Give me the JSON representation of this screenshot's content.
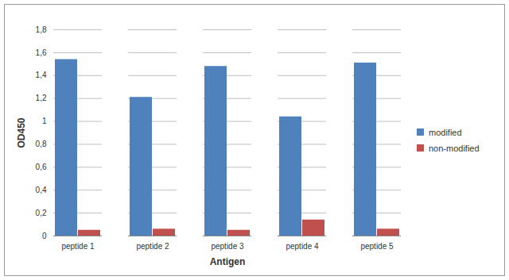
{
  "chart_data": {
    "type": "bar",
    "x_label": "Antigen",
    "y_label": "OD450",
    "categories": [
      "peptide 1",
      "peptide 2",
      "peptide 3",
      "peptide 4",
      "peptide 5"
    ],
    "series": [
      {
        "name": "modified",
        "color": "#4f81bd",
        "values": [
          1.54,
          1.21,
          1.48,
          1.04,
          1.51
        ]
      },
      {
        "name": "non-modified",
        "color": "#c0504d",
        "values": [
          0.05,
          0.06,
          0.05,
          0.14,
          0.06
        ]
      }
    ],
    "ylim": [
      0,
      1.8
    ],
    "yticks": [
      0,
      {
        "value": 0.2,
        "label": "0,2"
      },
      {
        "value": 0.4,
        "label": "0,4"
      },
      {
        "value": 0.6,
        "label": "0,6"
      },
      {
        "value": 0.8,
        "label": "0,8"
      },
      1,
      {
        "value": 1.2,
        "label": "1,2"
      },
      {
        "value": 1.4,
        "label": "1,4"
      },
      {
        "value": 1.6,
        "label": "1,6"
      },
      {
        "value": 1.8,
        "label": "1,8"
      }
    ],
    "grid": true,
    "legend": "right"
  }
}
